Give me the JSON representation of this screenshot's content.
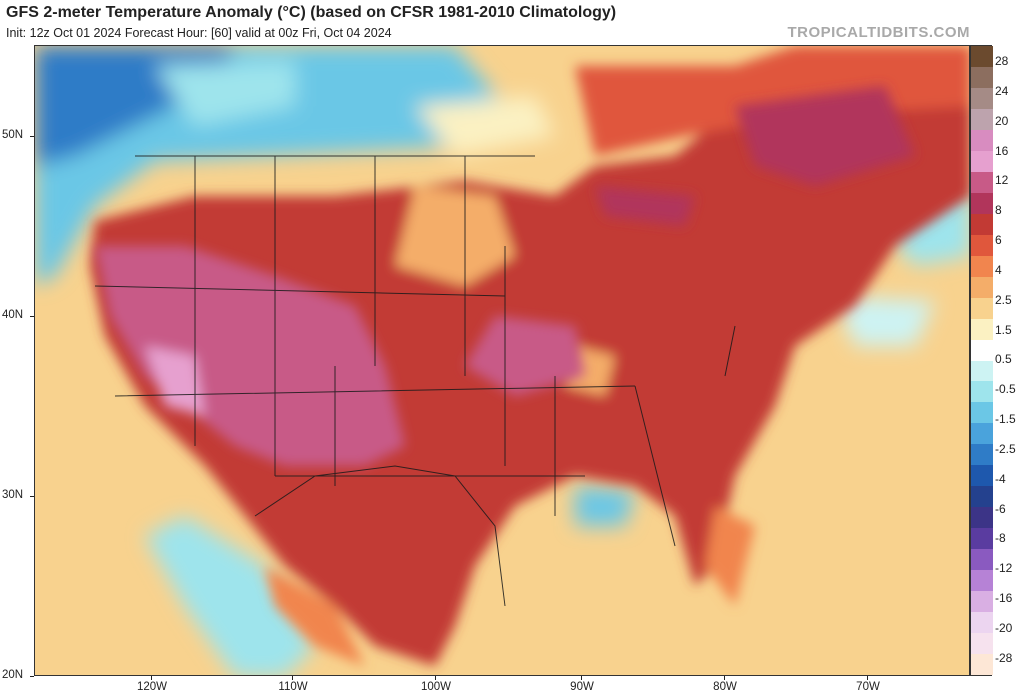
{
  "header": {
    "title": "GFS 2-meter Temperature Anomaly (°C) (based on CFSR 1981-2010 Climatology)",
    "subtitle": "Init: 12z Oct 01 2024   Forecast Hour: [60]   valid at 00z Fri, Oct 04 2024",
    "brand": "TROPICALTIDBITS.COM"
  },
  "map": {
    "lat_labels": [
      "50N",
      "40N",
      "30N",
      "20N"
    ],
    "lon_labels": [
      "120W",
      "110W",
      "100W",
      "90W",
      "80W",
      "70W"
    ]
  },
  "colorbar": {
    "labels": [
      "28",
      "24",
      "20",
      "16",
      "12",
      "8",
      "6",
      "4",
      "2.5",
      "1.5",
      "0.5",
      "-0.5",
      "-1.5",
      "-2.5",
      "-4",
      "-6",
      "-8",
      "-12",
      "-16",
      "-20",
      "-28"
    ],
    "colors": [
      "#6b4a2e",
      "#8c6e5f",
      "#a58b86",
      "#bda3ad",
      "#d88cc0",
      "#e6a0cf",
      "#c85a87",
      "#b1355b",
      "#c23a34",
      "#e0573c",
      "#f1854e",
      "#f4ad69",
      "#f8d28e",
      "#fbf1c2",
      "#ffffff",
      "#cdf3f3",
      "#9ee4ec",
      "#6bc7e6",
      "#4aa3dc",
      "#2f7cc7",
      "#1e58ad",
      "#24418e",
      "#3c3487",
      "#5a3ca0",
      "#8a5ac0",
      "#b682d6",
      "#d9afe3",
      "#ecd5f0",
      "#f6e2ee",
      "#fde7d6"
    ]
  },
  "colors": {
    "ocean": "#f8d28e",
    "hot_core": "#c85a87",
    "warm": "#c23a34",
    "cool": "#6bc7e6"
  }
}
